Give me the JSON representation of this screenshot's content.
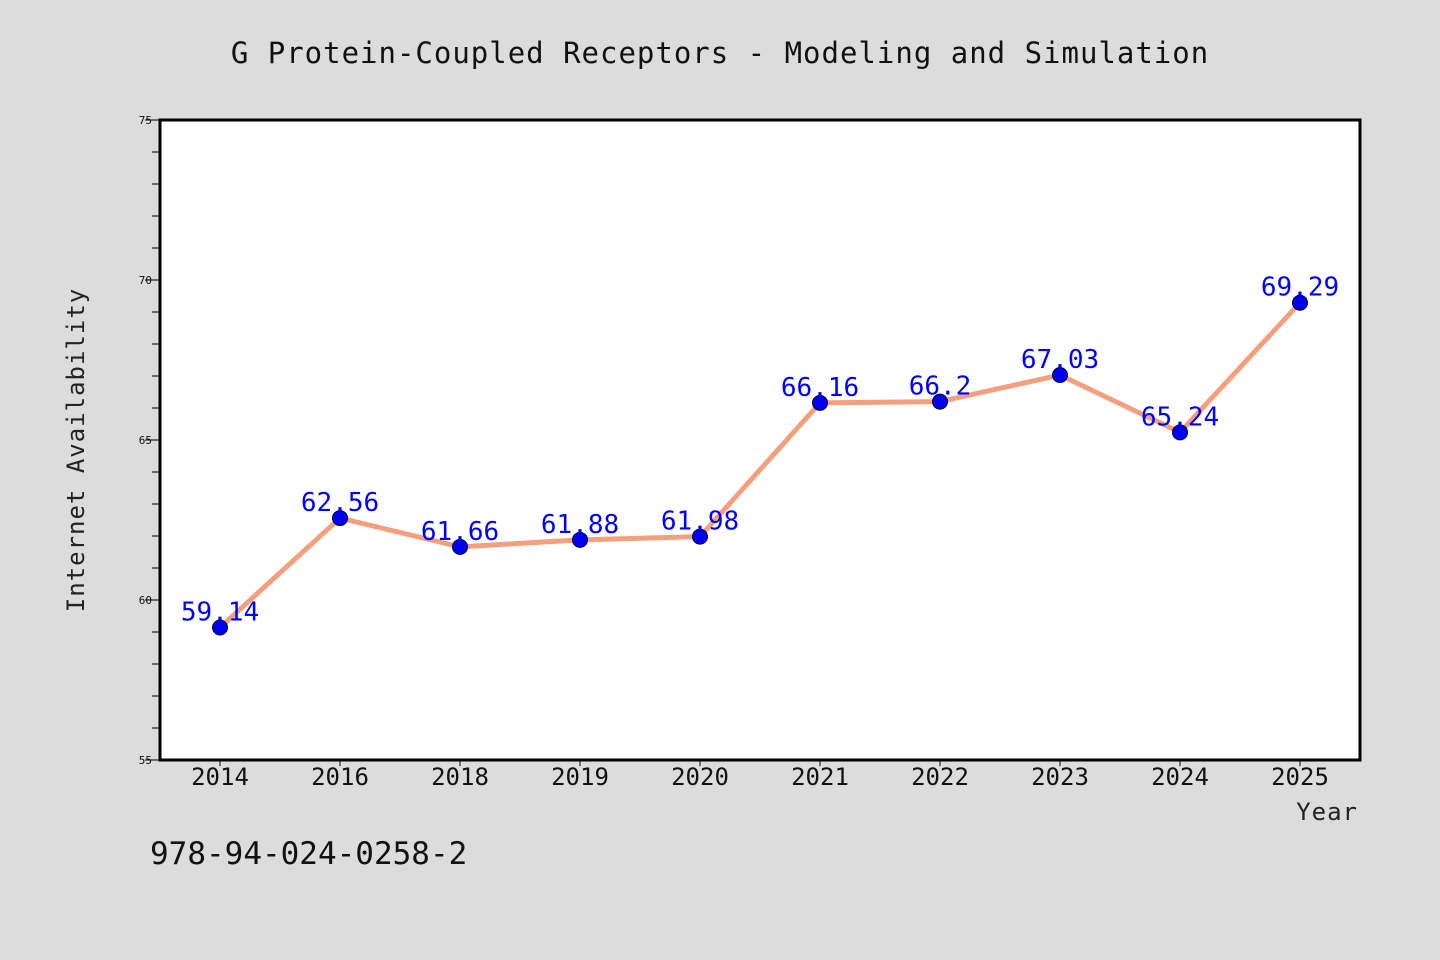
{
  "chart_data": {
    "type": "line",
    "title": "G Protein-Coupled Receptors - Modeling and Simulation",
    "xlabel": "Year",
    "ylabel": "Internet Availability",
    "categories": [
      "2014",
      "2016",
      "2018",
      "2019",
      "2020",
      "2021",
      "2022",
      "2023",
      "2024",
      "2025"
    ],
    "series": [
      {
        "values": [
          59.14,
          62.56,
          61.66,
          61.88,
          61.98,
          66.16,
          66.2,
          67.03,
          65.24,
          69.29
        ],
        "data_labels": [
          "59.14",
          "62.56",
          "61.66",
          "61.88",
          "61.98",
          "66.16",
          "66.2",
          "67.03",
          "65.24",
          "69.29"
        ]
      }
    ],
    "ylim": [
      55,
      75
    ],
    "yticks": [
      "55",
      "60",
      "65",
      "70",
      "75"
    ],
    "grid": false,
    "legend": "none",
    "colors": {
      "line": "#f4a07e",
      "marker": "#0000ee",
      "data_label": "#0000ff",
      "background": "#dcdcdc",
      "plot_area": "#ffffff"
    }
  },
  "footer_text": "978-94-024-0258-2"
}
